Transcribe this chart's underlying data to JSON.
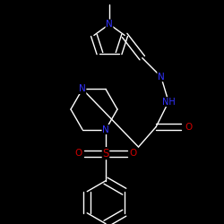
{
  "background": "#000000",
  "bond_color": "#ffffff",
  "atom_colors": {
    "N": "#3333ff",
    "O": "#cc0000",
    "S": "#cc0000",
    "C": "#ffffff"
  },
  "figsize": [
    2.5,
    2.5
  ],
  "dpi": 100
}
